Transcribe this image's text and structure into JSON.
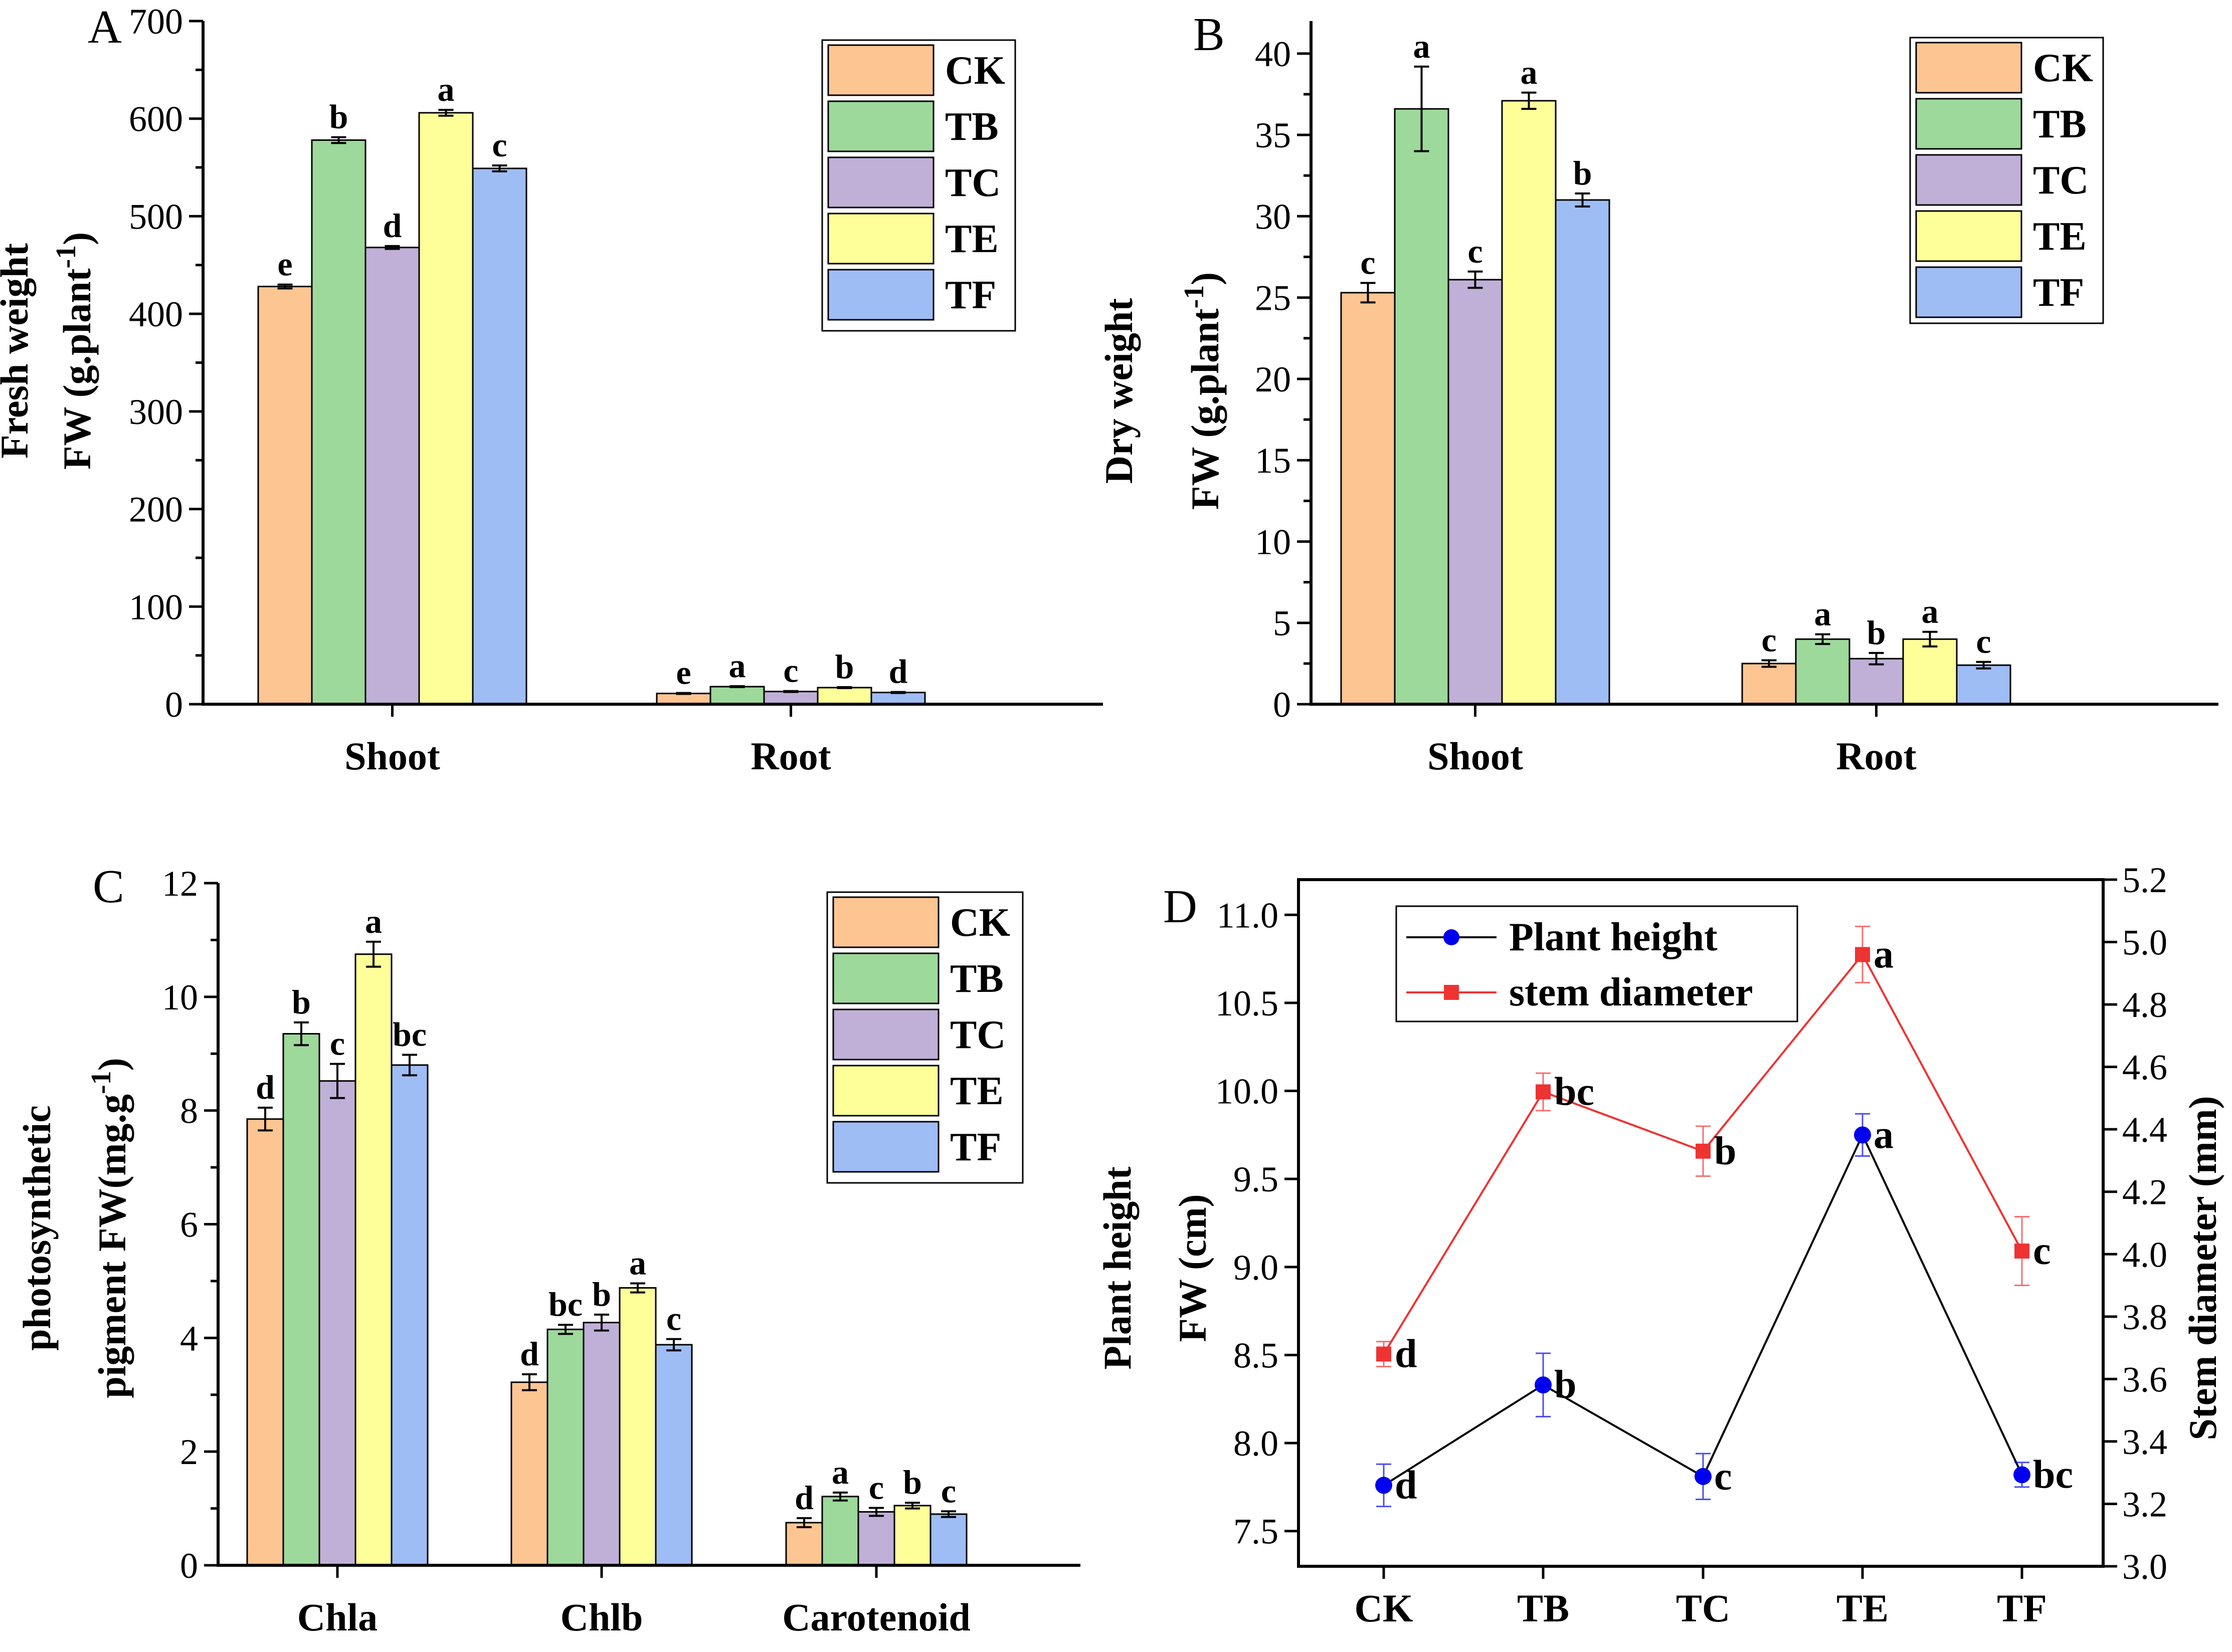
{
  "colors": {
    "CK": "#FDC592",
    "TB": "#9DD99A",
    "TC": "#C0B0D8",
    "TE": "#FFFF99",
    "TF": "#9FBDF5",
    "line_height": "#0000EE",
    "line_stem": "#EE3333"
  },
  "groups_legend": [
    "CK",
    "TB",
    "TC",
    "TE",
    "TF"
  ],
  "chart_data": [
    {
      "panel": "A",
      "type": "bar",
      "ylabel_line1": "Fresh weight",
      "ylabel_line2_prefix": "FW (g.plant",
      "ylabel_line2_sup": "-1",
      "ylabel_line2_suffix": ")",
      "ylim": [
        0,
        700
      ],
      "yticks": [
        "0",
        "100",
        "200",
        "300",
        "400",
        "500",
        "600",
        "700"
      ],
      "categories": [
        "Shoot",
        "Root"
      ],
      "series": [
        {
          "name": "CK",
          "values": [
            428,
            11
          ],
          "errors": [
            2,
            0.5
          ],
          "letters": [
            "e",
            "e"
          ]
        },
        {
          "name": "TB",
          "values": [
            578,
            18
          ],
          "errors": [
            3,
            0.5
          ],
          "letters": [
            "b",
            "a"
          ]
        },
        {
          "name": "TC",
          "values": [
            468,
            13
          ],
          "errors": [
            1.5,
            0.5
          ],
          "letters": [
            "d",
            "c"
          ]
        },
        {
          "name": "TE",
          "values": [
            606,
            17
          ],
          "errors": [
            3,
            0.5
          ],
          "letters": [
            "a",
            "b"
          ]
        },
        {
          "name": "TF",
          "values": [
            549,
            12
          ],
          "errors": [
            3,
            0.5
          ],
          "letters": [
            "c",
            "d"
          ]
        }
      ],
      "legend": "top-right"
    },
    {
      "panel": "B",
      "type": "bar",
      "ylabel_line1": "Dry weight",
      "ylabel_line2_prefix": "FW (g.plant",
      "ylabel_line2_sup": "-1",
      "ylabel_line2_suffix": ")",
      "ylim": [
        0,
        42
      ],
      "yticks": [
        "0",
        "5",
        "10",
        "15",
        "20",
        "25",
        "30",
        "35",
        "40"
      ],
      "categories": [
        "Shoot",
        "Root"
      ],
      "series": [
        {
          "name": "CK",
          "values": [
            25.3,
            2.5
          ],
          "errors": [
            0.6,
            0.2
          ],
          "letters": [
            "c",
            "c"
          ]
        },
        {
          "name": "TB",
          "values": [
            36.6,
            4.0
          ],
          "errors": [
            2.6,
            0.3
          ],
          "letters": [
            "a",
            "a"
          ]
        },
        {
          "name": "TC",
          "values": [
            26.1,
            2.8
          ],
          "errors": [
            0.5,
            0.35
          ],
          "letters": [
            "c",
            "b"
          ]
        },
        {
          "name": "TE",
          "values": [
            37.1,
            4.0
          ],
          "errors": [
            0.5,
            0.45
          ],
          "letters": [
            "a",
            "a"
          ]
        },
        {
          "name": "TF",
          "values": [
            31.0,
            2.4
          ],
          "errors": [
            0.4,
            0.2
          ],
          "letters": [
            "b",
            "c"
          ]
        }
      ],
      "legend": "top-right"
    },
    {
      "panel": "C",
      "type": "bar",
      "ylabel_line1": "photosynthetic",
      "ylabel_line2_prefix": "pigment FW(mg.g",
      "ylabel_line2_sup": "-1",
      "ylabel_line2_suffix": ")",
      "ylim": [
        0,
        12
      ],
      "yticks": [
        "0",
        "2",
        "4",
        "6",
        "8",
        "10",
        "12"
      ],
      "categories": [
        "Chla",
        "Chlb",
        "Carotenoid"
      ],
      "series": [
        {
          "name": "CK",
          "values": [
            7.85,
            3.22,
            0.75
          ],
          "errors": [
            0.2,
            0.14,
            0.08
          ],
          "letters": [
            "d",
            "d",
            "d"
          ]
        },
        {
          "name": "TB",
          "values": [
            9.35,
            4.15,
            1.21
          ],
          "errors": [
            0.2,
            0.08,
            0.07
          ],
          "letters": [
            "b",
            "bc",
            "a"
          ]
        },
        {
          "name": "TC",
          "values": [
            8.52,
            4.27,
            0.94
          ],
          "errors": [
            0.3,
            0.14,
            0.07
          ],
          "letters": [
            "c",
            "b",
            "c"
          ]
        },
        {
          "name": "TE",
          "values": [
            10.75,
            4.88,
            1.05
          ],
          "errors": [
            0.22,
            0.08,
            0.05
          ],
          "letters": [
            "a",
            "a",
            "b"
          ]
        },
        {
          "name": "TF",
          "values": [
            8.8,
            3.88,
            0.9
          ],
          "errors": [
            0.18,
            0.1,
            0.05
          ],
          "letters": [
            "bc",
            "c",
            "c"
          ]
        }
      ],
      "legend": "top-right"
    },
    {
      "panel": "D",
      "type": "line",
      "ylabel_left_line1": "Plant height",
      "ylabel_left_line2": "FW (cm)",
      "ylabel_right": "Stem diameter (mm)",
      "categories": [
        "CK",
        "TB",
        "TC",
        "TE",
        "TF"
      ],
      "ylim_left": [
        7.3,
        11.2
      ],
      "yticks_left": [
        "7.5",
        "8.0",
        "8.5",
        "9.0",
        "9.5",
        "10.0",
        "10.5",
        "11.0"
      ],
      "ylim_right": [
        3.0,
        5.2
      ],
      "yticks_right": [
        "3.0",
        "3.2",
        "3.4",
        "3.6",
        "3.8",
        "4.0",
        "4.2",
        "4.4",
        "4.6",
        "4.8",
        "5.0",
        "5.2"
      ],
      "series": [
        {
          "name": "Plant height",
          "axis": "left",
          "values": [
            7.76,
            8.33,
            7.81,
            9.75,
            7.82
          ],
          "errors": [
            0.12,
            0.18,
            0.13,
            0.12,
            0.07
          ],
          "letters": [
            "d",
            "b",
            "c",
            "a",
            "bc"
          ]
        },
        {
          "name": "stem diameter",
          "axis": "right",
          "values": [
            3.68,
            4.52,
            4.33,
            4.96,
            4.01
          ],
          "errors": [
            0.04,
            0.06,
            0.08,
            0.09,
            0.11
          ],
          "letters": [
            "d",
            "bc",
            "b",
            "a",
            "c"
          ]
        }
      ],
      "legend": "top-left"
    }
  ]
}
